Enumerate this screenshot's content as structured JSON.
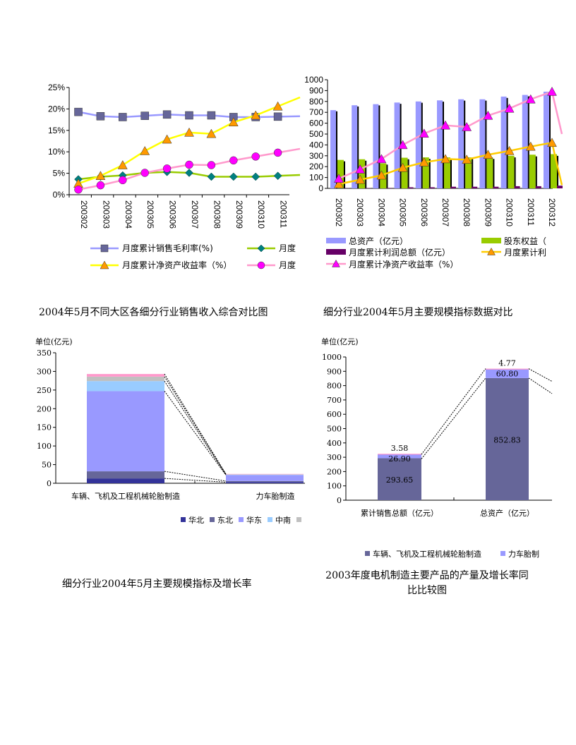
{
  "captions": {
    "c1": "2004年5月不同大区各细分行业销售收入综合对比图",
    "c2": "细分行业2004年5月主要规模指标数据对比",
    "c3": "细分行业2004年5月主要规模指标及增长率",
    "c4_line1": "2003年度电机制造主要产品的产量及增长率同",
    "c4_line2": "比比较图"
  },
  "chart_data": [
    {
      "type": "line",
      "categories": [
        "200302",
        "200303",
        "200304",
        "200305",
        "200306",
        "200307",
        "200308",
        "200309",
        "200310",
        "200311"
      ],
      "ylim": [
        0,
        25
      ],
      "yticks": [
        "0%",
        "5%",
        "10%",
        "15%",
        "20%",
        "25%"
      ],
      "series": [
        {
          "name": "月度累计销售毛利率(%)",
          "color": "#9999ff",
          "marker": "square",
          "marker_color": "#666699",
          "values": [
            19.3,
            18.3,
            18.1,
            18.4,
            18.7,
            18.5,
            18.5,
            18.1,
            18.1,
            18.2
          ]
        },
        {
          "name": "月度",
          "color": "#99cc00",
          "marker": "diamond",
          "marker_color": "#008080",
          "values": [
            3.6,
            4.2,
            4.5,
            5.1,
            5.3,
            5.1,
            4.2,
            4.2,
            4.2,
            4.4
          ]
        },
        {
          "name": "月度累计净资产收益率（%）",
          "color": "#ffff00",
          "marker": "triangle",
          "marker_color": "#ff9900",
          "values": [
            2.6,
            4.4,
            6.9,
            10.2,
            12.9,
            14.5,
            14.2,
            16.9,
            18.5,
            20.6
          ]
        },
        {
          "name": "月度",
          "color": "#ff99cc",
          "marker": "circle",
          "marker_color": "#ff00ff",
          "values": [
            1.2,
            2.2,
            3.4,
            5.1,
            6.1,
            7.0,
            6.9,
            8.0,
            8.9,
            9.8
          ]
        }
      ]
    },
    {
      "type": "bar",
      "categories": [
        "200302",
        "200303",
        "200304",
        "200305",
        "200306",
        "200307",
        "200308",
        "200309",
        "200310",
        "200311",
        "200312"
      ],
      "ylim": [
        0,
        1000
      ],
      "yticks": [
        "0",
        "100",
        "200",
        "300",
        "400",
        "500",
        "600",
        "700",
        "800",
        "900",
        "1000"
      ],
      "bar_series": [
        {
          "name": "总资产（亿元）",
          "color": "#9999ff",
          "values": [
            720,
            765,
            775,
            790,
            800,
            810,
            820,
            820,
            845,
            860,
            890
          ]
        },
        {
          "name": "股东权益（",
          "color": "#99cc00",
          "values": [
            262,
            268,
            230,
            282,
            285,
            285,
            285,
            285,
            300,
            310,
            315
          ]
        },
        {
          "name": "月度累计利润总额（亿元）",
          "color": "#660066",
          "values": [
            2,
            3,
            4,
            10,
            10,
            15,
            15,
            15,
            20,
            20,
            25
          ]
        }
      ],
      "line_series": [
        {
          "name": "月度累计利",
          "color": "#ffcc00",
          "marker": "triangle",
          "marker_color": "#ff9900",
          "values": [
            40,
            80,
            120,
            190,
            240,
            270,
            265,
            310,
            345,
            385,
            420
          ]
        },
        {
          "name": "月度累计净资产收益率（%）",
          "color": "#ff99cc",
          "marker": "triangle",
          "marker_color": "#ff00ff",
          "values": [
            90,
            175,
            270,
            400,
            505,
            580,
            565,
            670,
            735,
            820,
            890
          ]
        }
      ]
    },
    {
      "type": "bar",
      "stacked": true,
      "unit_label": "单位(亿元)",
      "categories": [
        "车辆、飞机及工程机械轮胎制造",
        "力车胎制造"
      ],
      "ylim": [
        0,
        350
      ],
      "yticks": [
        "0",
        "50",
        "100",
        "150",
        "200",
        "250",
        "300",
        "350"
      ],
      "series": [
        {
          "name": "华北",
          "color": "#333399",
          "values": [
            13,
            3
          ]
        },
        {
          "name": "东北",
          "color": "#666699",
          "values": [
            19,
            3
          ]
        },
        {
          "name": "华东",
          "color": "#9999ff",
          "values": [
            215,
            16
          ]
        },
        {
          "name": "中南",
          "color": "#99ccff",
          "values": [
            27,
            1
          ]
        },
        {
          "name": "",
          "color": "#c0c0c0",
          "values": [
            12,
            1
          ]
        },
        {
          "name": "",
          "color": "#ff99cc",
          "values": [
            7,
            1
          ]
        }
      ]
    },
    {
      "type": "bar",
      "stacked": true,
      "unit_label": "单位(亿元)",
      "categories": [
        "累计销售总额（亿元）",
        "总资产（亿元）"
      ],
      "ylim": [
        0,
        1000
      ],
      "yticks": [
        "0",
        "100",
        "200",
        "300",
        "400",
        "500",
        "600",
        "700",
        "800",
        "900",
        "1000"
      ],
      "series": [
        {
          "name": "车辆、飞机及工程机械轮胎制造",
          "color": "#666699",
          "values": [
            293.65,
            852.83
          ],
          "labels": [
            "293.65",
            "852.83"
          ]
        },
        {
          "name": "力车胎制",
          "color": "#9999ff",
          "values": [
            26.9,
            60.8
          ],
          "labels": [
            "26.90",
            "60.80"
          ]
        },
        {
          "name": "",
          "color": "#ff99cc",
          "values": [
            3.58,
            4.77
          ],
          "labels": [
            "3.58",
            "4.77"
          ]
        }
      ]
    }
  ]
}
